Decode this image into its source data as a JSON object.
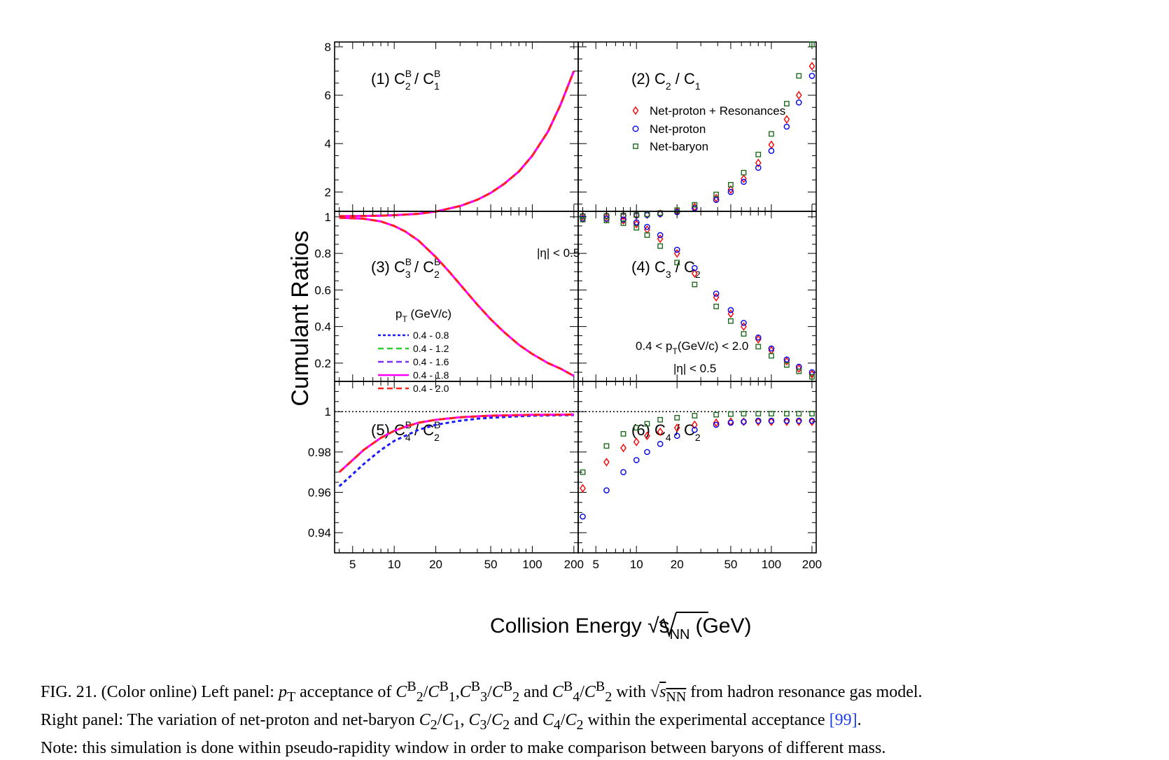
{
  "figure": {
    "y_axis_title": "Cumulant Ratios",
    "x_axis_title": "Collision Energy √s",
    "x_axis_title_sub": "NN",
    "x_axis_title_unit": "(GeV)",
    "x_tick_labels": [
      "5",
      "10",
      "20",
      "50",
      "100",
      "200"
    ]
  },
  "caption": {
    "label": "FIG. 21.",
    "text_line1": "(Color online) Left panel: pT acceptance of C2B/C1B,C3B/C2B and C4B/C2B with √sNN from hadron resonance gas model.",
    "text_line2": "Right panel: The variation of net-proton and net-baryon C2/C1, C3/C2 and C4/C2 within the experimental acceptance [99].",
    "text_line3": "Note: this simulation is done within pseudo-rapidity window in order to make comparison between baryons of different mass.",
    "ref": "[99]"
  },
  "colors": {
    "pt_0p4_0p8": "#1a1aff",
    "pt_0p4_1p2": "#33cc33",
    "pt_0p4_1p6": "#7a2fff",
    "pt_0p4_1p8": "#ff00ff",
    "pt_0p4_2p0": "#ff2020",
    "net_proton_res": "#ff0000",
    "net_proton": "#0000ee",
    "net_baryon": "#1e6b1e"
  },
  "chart_data": [
    {
      "id": "panel1",
      "type": "line",
      "title": "(1) C2B / C1B",
      "xscale": "log",
      "xlim": [
        3.7,
        215
      ],
      "ylim": [
        1.2,
        8.2
      ],
      "yticks": [
        2,
        4,
        6,
        8
      ],
      "ytick_labels": [
        "2",
        "4",
        "6",
        "8"
      ],
      "series": [
        {
          "name": "0.4 - 0.8",
          "style": "dotted",
          "x": [
            4,
            6,
            8,
            10,
            15,
            20,
            30,
            40,
            50,
            62.4,
            80,
            100,
            130,
            160,
            200
          ],
          "y": [
            1.0,
            1.01,
            1.02,
            1.04,
            1.1,
            1.19,
            1.42,
            1.68,
            1.96,
            2.33,
            2.85,
            3.5,
            4.5,
            5.6,
            7.0
          ]
        },
        {
          "name": "0.4 - 2.0",
          "style": "dashed",
          "x": [
            4,
            6,
            8,
            10,
            15,
            20,
            30,
            40,
            50,
            62.4,
            80,
            100,
            130,
            160,
            200
          ],
          "y": [
            1.0,
            1.01,
            1.02,
            1.04,
            1.1,
            1.19,
            1.42,
            1.68,
            1.96,
            2.33,
            2.85,
            3.5,
            4.5,
            5.6,
            7.0
          ]
        }
      ]
    },
    {
      "id": "panel2",
      "type": "scatter",
      "title": "(2) C2 / C1",
      "xscale": "log",
      "xlim": [
        3.7,
        215
      ],
      "ylim": [
        1.2,
        8.2
      ],
      "legend": {
        "placement": "top-left",
        "entries": [
          "Net-proton + Resonances",
          "Net-proton",
          "Net-baryon"
        ]
      },
      "series": [
        {
          "name": "Net-proton + Resonances",
          "marker": "diamond",
          "x": [
            4,
            6,
            8,
            10,
            12,
            15,
            20,
            27,
            39,
            50,
            62.4,
            80,
            100,
            130,
            160,
            200
          ],
          "y": [
            1.0,
            1.01,
            1.02,
            1.04,
            1.06,
            1.1,
            1.2,
            1.38,
            1.75,
            2.1,
            2.55,
            3.2,
            3.95,
            5.0,
            6.0,
            7.2
          ]
        },
        {
          "name": "Net-proton",
          "marker": "circle",
          "x": [
            4,
            6,
            8,
            10,
            12,
            15,
            20,
            27,
            39,
            50,
            62.4,
            80,
            100,
            130,
            160,
            200
          ],
          "y": [
            1.0,
            1.01,
            1.02,
            1.03,
            1.05,
            1.09,
            1.17,
            1.33,
            1.67,
            2.0,
            2.42,
            3.0,
            3.7,
            4.7,
            5.7,
            6.8
          ]
        },
        {
          "name": "Net-baryon",
          "marker": "square",
          "x": [
            4,
            6,
            8,
            10,
            12,
            15,
            20,
            27,
            39,
            50,
            62.4,
            80,
            100,
            130,
            160,
            200
          ],
          "y": [
            1.0,
            1.01,
            1.03,
            1.05,
            1.08,
            1.13,
            1.25,
            1.47,
            1.9,
            2.3,
            2.8,
            3.55,
            4.4,
            5.65,
            6.8,
            8.1
          ]
        }
      ]
    },
    {
      "id": "panel3",
      "type": "line",
      "title": "(3) C3B / C2B",
      "annotation": "|η| < 0.5",
      "xscale": "log",
      "xlim": [
        3.7,
        215
      ],
      "ylim": [
        0.1,
        1.03
      ],
      "yticks": [
        0.2,
        0.4,
        0.6,
        0.8,
        1
      ],
      "ytick_labels": [
        "0.2",
        "0.4",
        "0.6",
        "0.8",
        "1"
      ],
      "legend": {
        "placement": "left",
        "header": "pT (GeV/c)",
        "entries": [
          "0.4 - 0.8",
          "0.4 - 1.2",
          "0.4 - 1.6",
          "0.4 - 1.8",
          "0.4 - 2.0"
        ]
      },
      "series": [
        {
          "name": "0.4 - 2.0",
          "style": "dashed",
          "x": [
            4,
            6,
            8,
            10,
            12,
            15,
            20,
            25,
            30,
            40,
            50,
            62.4,
            80,
            100,
            130,
            160,
            200
          ],
          "y": [
            0.995,
            0.99,
            0.975,
            0.95,
            0.92,
            0.87,
            0.78,
            0.7,
            0.63,
            0.52,
            0.44,
            0.37,
            0.3,
            0.25,
            0.2,
            0.17,
            0.13
          ]
        }
      ]
    },
    {
      "id": "panel4",
      "type": "scatter",
      "title": "(4) C3 / C2",
      "annotation": "0.4 < pT(GeV/c) < 2.0",
      "annotation2": "|η| < 0.5",
      "xscale": "log",
      "xlim": [
        3.7,
        215
      ],
      "ylim": [
        0.1,
        1.03
      ],
      "series": [
        {
          "name": "Net-proton + Resonances",
          "marker": "diamond",
          "x": [
            4,
            6,
            8,
            10,
            12,
            15,
            20,
            27,
            39,
            50,
            62.4,
            80,
            100,
            130,
            160,
            200
          ],
          "y": [
            0.99,
            0.99,
            0.98,
            0.96,
            0.93,
            0.88,
            0.8,
            0.69,
            0.56,
            0.47,
            0.4,
            0.33,
            0.27,
            0.21,
            0.17,
            0.14
          ]
        },
        {
          "name": "Net-proton",
          "marker": "circle",
          "x": [
            4,
            6,
            8,
            10,
            12,
            15,
            20,
            27,
            39,
            50,
            62.4,
            80,
            100,
            130,
            160,
            200
          ],
          "y": [
            0.99,
            0.99,
            0.985,
            0.97,
            0.945,
            0.9,
            0.82,
            0.72,
            0.58,
            0.49,
            0.42,
            0.34,
            0.28,
            0.22,
            0.18,
            0.15
          ]
        },
        {
          "name": "Net-baryon",
          "marker": "square",
          "x": [
            4,
            6,
            8,
            10,
            12,
            15,
            20,
            27,
            39,
            50,
            62.4,
            80,
            100,
            130,
            160,
            200
          ],
          "y": [
            0.985,
            0.98,
            0.965,
            0.94,
            0.9,
            0.84,
            0.75,
            0.63,
            0.51,
            0.43,
            0.36,
            0.29,
            0.24,
            0.19,
            0.155,
            0.125
          ]
        }
      ]
    },
    {
      "id": "panel5",
      "type": "line",
      "title": "(5) C4B / C2B",
      "xscale": "log",
      "xlim": [
        3.7,
        215
      ],
      "ylim": [
        0.93,
        1.015
      ],
      "yticks": [
        0.94,
        0.96,
        0.98,
        1
      ],
      "ytick_labels": [
        "0.94",
        "0.96",
        "0.98",
        "1"
      ],
      "reference_line": 1,
      "series": [
        {
          "name": "0.4 - 0.8",
          "style": "dotted",
          "x": [
            4,
            5,
            6,
            8,
            10,
            12,
            15,
            20,
            30,
            40,
            50,
            70,
            100,
            150,
            200
          ],
          "y": [
            0.963,
            0.969,
            0.974,
            0.981,
            0.9855,
            0.988,
            0.991,
            0.9935,
            0.9955,
            0.9965,
            0.997,
            0.9975,
            0.998,
            0.9982,
            0.9983
          ]
        },
        {
          "name": "0.4 - 2.0",
          "style": "dashed",
          "x": [
            4,
            5,
            6,
            8,
            10,
            12,
            15,
            20,
            30,
            40,
            50,
            70,
            100,
            150,
            200
          ],
          "y": [
            0.97,
            0.976,
            0.981,
            0.987,
            0.9905,
            0.9925,
            0.9945,
            0.996,
            0.9972,
            0.9977,
            0.998,
            0.9982,
            0.9984,
            0.9985,
            0.9986
          ]
        }
      ]
    },
    {
      "id": "panel6",
      "type": "scatter",
      "title": "(6) C4 / C2",
      "xscale": "log",
      "xlim": [
        3.7,
        215
      ],
      "ylim": [
        0.93,
        1.015
      ],
      "reference_line": 1,
      "series": [
        {
          "name": "Net-proton + Resonances",
          "marker": "diamond",
          "x": [
            4,
            6,
            8,
            10,
            12,
            15,
            20,
            27,
            39,
            50,
            62.4,
            80,
            100,
            130,
            160,
            200
          ],
          "y": [
            0.962,
            0.975,
            0.982,
            0.985,
            0.988,
            0.99,
            0.992,
            0.9935,
            0.9945,
            0.995,
            0.995,
            0.995,
            0.995,
            0.995,
            0.995,
            0.995
          ]
        },
        {
          "name": "Net-proton",
          "marker": "circle",
          "x": [
            4,
            6,
            8,
            10,
            12,
            15,
            20,
            27,
            39,
            50,
            62.4,
            80,
            100,
            130,
            160,
            200
          ],
          "y": [
            0.948,
            0.961,
            0.97,
            0.976,
            0.98,
            0.984,
            0.988,
            0.991,
            0.9935,
            0.9945,
            0.995,
            0.9955,
            0.9955,
            0.9955,
            0.9955,
            0.9955
          ]
        },
        {
          "name": "Net-baryon",
          "marker": "square",
          "x": [
            4,
            6,
            8,
            10,
            12,
            15,
            20,
            27,
            39,
            50,
            62.4,
            80,
            100,
            130,
            160,
            200
          ],
          "y": [
            0.97,
            0.983,
            0.989,
            0.992,
            0.994,
            0.996,
            0.997,
            0.998,
            0.9985,
            0.9988,
            0.999,
            0.999,
            0.999,
            0.999,
            0.999,
            0.999
          ]
        }
      ]
    }
  ]
}
